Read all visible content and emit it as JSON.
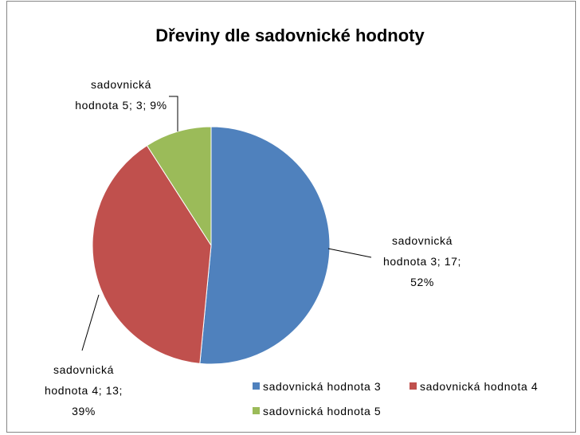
{
  "chart_data": {
    "type": "pie",
    "title": "Dřeviny dle sadovnické hodnoty",
    "slices": [
      {
        "name": "sadovnická hodnota 3",
        "value": 17,
        "percent": "52%",
        "color": "#4F81BD",
        "label_lines": [
          "sadovnická",
          "hodnota 3; 17;",
          "52%"
        ]
      },
      {
        "name": "sadovnická hodnota 4",
        "value": 13,
        "percent": "39%",
        "color": "#C0504D",
        "label_lines": [
          "sadovnická",
          "hodnota 4; 13;",
          "39%"
        ]
      },
      {
        "name": "sadovnická hodnota 5",
        "value": 3,
        "percent": "9%",
        "color": "#9BBB59",
        "label_lines": [
          "sadovnická",
          "hodnota 5; 3; 9%"
        ]
      }
    ],
    "legend": {
      "position": "bottom-right",
      "entries": [
        "sadovnická hodnota 3",
        "sadovnická hodnota 4",
        "sadovnická hodnota 5"
      ]
    }
  }
}
